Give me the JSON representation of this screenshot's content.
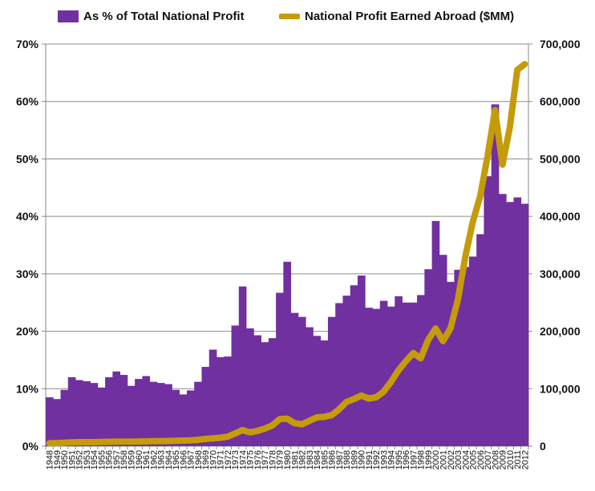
{
  "chart_data": {
    "type": "bar+line",
    "title": "",
    "xlabel": "",
    "categories": [
      "1948",
      "1949",
      "1950",
      "1951",
      "1952",
      "1953",
      "1954",
      "1955",
      "1956",
      "1957",
      "1958",
      "1959",
      "1960",
      "1961",
      "1962",
      "1963",
      "1964",
      "1965",
      "1966",
      "1967",
      "1968",
      "1969",
      "1970",
      "1971",
      "1972",
      "1973",
      "1974",
      "1975",
      "1976",
      "1977",
      "1978",
      "1979",
      "1980",
      "1981",
      "1982",
      "1983",
      "1984",
      "1985",
      "1986",
      "1987",
      "1988",
      "1989",
      "1990",
      "1991",
      "1992",
      "1993",
      "1994",
      "1995",
      "1996",
      "1997",
      "1998",
      "1999",
      "2000",
      "2001",
      "2002",
      "2003",
      "2004",
      "2005",
      "2006",
      "2007",
      "2008",
      "2009",
      "2010",
      "2011",
      "2012"
    ],
    "left_axis": {
      "min": 0,
      "max": 70,
      "step": 10,
      "tick_suffix": "%"
    },
    "right_axis": {
      "min": 0,
      "max": 700000,
      "step": 100000
    },
    "series": [
      {
        "name": "As % of Total National Profit",
        "type": "bar",
        "axis": "left",
        "color": "#7030a0",
        "values": [
          8.5,
          8.2,
          9.8,
          12.0,
          11.5,
          11.3,
          11.0,
          10.2,
          12.0,
          13.0,
          12.4,
          10.5,
          11.7,
          12.2,
          11.2,
          11.0,
          10.8,
          9.8,
          9.0,
          9.7,
          11.2,
          13.8,
          16.8,
          15.5,
          15.6,
          21.0,
          27.8,
          20.5,
          19.3,
          18.1,
          18.8,
          26.7,
          32.1,
          23.2,
          22.5,
          20.7,
          19.2,
          18.4,
          22.5,
          24.9,
          26.2,
          28.0,
          29.7,
          24.1,
          23.9,
          25.3,
          24.3,
          26.1,
          25.0,
          25.0,
          26.3,
          30.8,
          39.2,
          33.3,
          28.6,
          30.7,
          31.2,
          33.0,
          36.9,
          47.0,
          59.5,
          43.9,
          42.5,
          43.3,
          42.2
        ]
      },
      {
        "name": "National Profit Earned Abroad ($MM)",
        "type": "line",
        "axis": "right",
        "color": "#c59b0a",
        "values": [
          5000,
          5500,
          6000,
          6500,
          7000,
          7000,
          7000,
          7200,
          7500,
          7800,
          7800,
          7800,
          8000,
          8300,
          8600,
          8800,
          9000,
          9500,
          9800,
          10000,
          11000,
          12500,
          13500,
          14500,
          16500,
          22000,
          28000,
          24000,
          26500,
          30500,
          36000,
          47000,
          48000,
          40000,
          38000,
          44000,
          50000,
          51000,
          54000,
          64000,
          77000,
          82000,
          88000,
          83000,
          85000,
          95000,
          112000,
          132000,
          148000,
          162000,
          153000,
          185000,
          205000,
          183000,
          205000,
          255000,
          330000,
          390000,
          435000,
          505000,
          585000,
          490000,
          555000,
          655000,
          665000
        ]
      }
    ],
    "legend": {
      "placement": "top"
    }
  }
}
